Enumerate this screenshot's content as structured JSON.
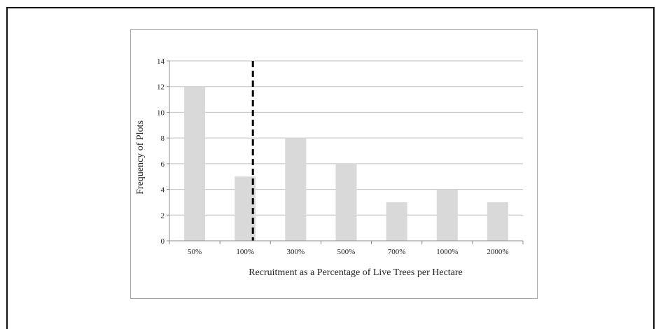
{
  "chart_data": {
    "type": "bar",
    "categories": [
      "50%",
      "100%",
      "300%",
      "500%",
      "700%",
      "1000%",
      "2000%"
    ],
    "values": [
      12,
      5,
      8,
      6,
      3,
      4,
      3
    ],
    "title": "",
    "xlabel": "Recruitment as a Percentage of Live Trees per Hectare",
    "ylabel": "Frequency of Plots",
    "ylim": [
      0,
      14
    ],
    "yticks": [
      "0",
      "2",
      "4",
      "6",
      "8",
      "10",
      "12",
      "14"
    ],
    "grid": true,
    "reference_line": {
      "category": "100%",
      "style": "dashed"
    },
    "colors": {
      "bar": "#d9d9d9",
      "grid": "#bfbfbf",
      "axis": "#8c8c8c",
      "reference_line": "#000000"
    }
  }
}
